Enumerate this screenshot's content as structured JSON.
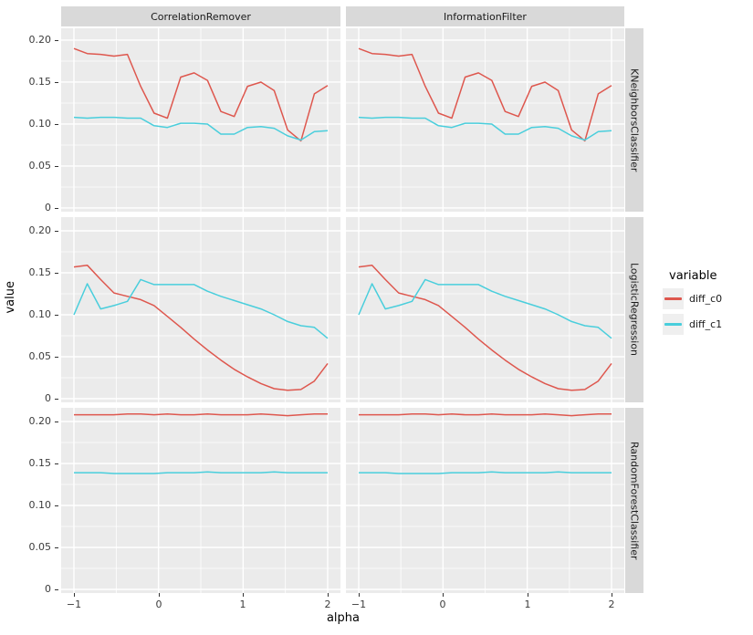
{
  "axes": {
    "x_title": "alpha",
    "y_title": "value",
    "x_tick_labels": [
      "−1",
      "0",
      "1",
      "2"
    ],
    "x_tick_values": [
      -1,
      0,
      1,
      2
    ],
    "x_minor_values": [
      -0.5,
      0.5,
      1.5
    ],
    "y_tick_labels": [
      "0.20",
      "0.15",
      "0.10",
      "0.05",
      "0"
    ],
    "y_tick_values": [
      0.2,
      0.15,
      0.1,
      0.05,
      0
    ],
    "y_minor_values": [
      0.175,
      0.125,
      0.075,
      0.025
    ]
  },
  "facets": {
    "cols": [
      "CorrelationRemover",
      "InformationFilter"
    ],
    "rows": [
      "KNeighborsClassifier",
      "LogisticRegression",
      "RandomForestClassifier"
    ]
  },
  "legend": {
    "title": "variable",
    "items": [
      {
        "label": "diff_c0",
        "color": "#DE574E"
      },
      {
        "label": "diff_c1",
        "color": "#49CEDC"
      }
    ]
  },
  "colors": {
    "panel_background": "#EBEBEB",
    "strip_background": "#D9D9D9",
    "grid": "#FFFFFF",
    "tick_text": "#3c3c3c",
    "series_diff_c0": "#DE574E",
    "series_diff_c1": "#49CEDC"
  },
  "chart_data": {
    "type": "line",
    "title": "",
    "xlabel": "alpha",
    "ylabel": "value",
    "legend_title": "variable",
    "legend_position": "right",
    "grid": true,
    "xlim": [
      -1.15,
      2.15
    ],
    "ylim": [
      0,
      0.215
    ],
    "facet": {
      "col_labels": [
        "CorrelationRemover",
        "InformationFilter"
      ],
      "row_labels": [
        "KNeighborsClassifier",
        "LogisticRegression",
        "RandomForestClassifier"
      ]
    },
    "x": [
      -1,
      -0.842,
      -0.684,
      -0.526,
      -0.368,
      -0.211,
      -0.053,
      0.105,
      0.263,
      0.421,
      0.579,
      0.737,
      0.895,
      1.053,
      1.211,
      1.368,
      1.526,
      1.684,
      1.842,
      2
    ],
    "panels": [
      {
        "row": "KNeighborsClassifier",
        "col": "CorrelationRemover",
        "series": [
          {
            "name": "diff_c0",
            "values": [
              0.19,
              0.184,
              0.183,
              0.181,
              0.183,
              0.145,
              0.113,
              0.107,
              0.156,
              0.161,
              0.152,
              0.115,
              0.109,
              0.145,
              0.15,
              0.14,
              0.093,
              0.08,
              0.136,
              0.146
            ]
          },
          {
            "name": "diff_c1",
            "values": [
              0.108,
              0.107,
              0.108,
              0.108,
              0.107,
              0.107,
              0.098,
              0.096,
              0.101,
              0.101,
              0.1,
              0.088,
              0.088,
              0.096,
              0.097,
              0.095,
              0.086,
              0.081,
              0.091,
              0.092
            ]
          }
        ]
      },
      {
        "row": "KNeighborsClassifier",
        "col": "InformationFilter",
        "series": [
          {
            "name": "diff_c0",
            "values": [
              0.19,
              0.184,
              0.183,
              0.181,
              0.183,
              0.145,
              0.113,
              0.107,
              0.156,
              0.161,
              0.152,
              0.115,
              0.109,
              0.145,
              0.15,
              0.14,
              0.093,
              0.08,
              0.136,
              0.146
            ]
          },
          {
            "name": "diff_c1",
            "values": [
              0.108,
              0.107,
              0.108,
              0.108,
              0.107,
              0.107,
              0.098,
              0.096,
              0.101,
              0.101,
              0.1,
              0.088,
              0.088,
              0.096,
              0.097,
              0.095,
              0.086,
              0.081,
              0.091,
              0.092
            ]
          }
        ]
      },
      {
        "row": "LogisticRegression",
        "col": "CorrelationRemover",
        "series": [
          {
            "name": "diff_c0",
            "values": [
              0.157,
              0.159,
              0.142,
              0.126,
              0.122,
              0.118,
              0.111,
              0.098,
              0.085,
              0.071,
              0.058,
              0.046,
              0.035,
              0.026,
              0.018,
              0.012,
              0.01,
              0.011,
              0.021,
              0.042
            ]
          },
          {
            "name": "diff_c1",
            "values": [
              0.1,
              0.137,
              0.107,
              0.111,
              0.116,
              0.142,
              0.136,
              0.136,
              0.136,
              0.136,
              0.128,
              0.122,
              0.117,
              0.112,
              0.107,
              0.1,
              0.092,
              0.087,
              0.085,
              0.072
            ]
          }
        ]
      },
      {
        "row": "LogisticRegression",
        "col": "InformationFilter",
        "series": [
          {
            "name": "diff_c0",
            "values": [
              0.157,
              0.159,
              0.142,
              0.126,
              0.122,
              0.118,
              0.111,
              0.098,
              0.085,
              0.071,
              0.058,
              0.046,
              0.035,
              0.026,
              0.018,
              0.012,
              0.01,
              0.011,
              0.021,
              0.042
            ]
          },
          {
            "name": "diff_c1",
            "values": [
              0.1,
              0.137,
              0.107,
              0.111,
              0.116,
              0.142,
              0.136,
              0.136,
              0.136,
              0.136,
              0.128,
              0.122,
              0.117,
              0.112,
              0.107,
              0.1,
              0.092,
              0.087,
              0.085,
              0.072
            ]
          }
        ]
      },
      {
        "row": "RandomForestClassifier",
        "col": "CorrelationRemover",
        "series": [
          {
            "name": "diff_c0",
            "values": [
              0.208,
              0.208,
              0.208,
              0.208,
              0.209,
              0.209,
              0.208,
              0.209,
              0.208,
              0.208,
              0.209,
              0.208,
              0.208,
              0.208,
              0.209,
              0.208,
              0.207,
              0.208,
              0.209,
              0.209
            ]
          },
          {
            "name": "diff_c1",
            "values": [
              0.139,
              0.139,
              0.139,
              0.138,
              0.138,
              0.138,
              0.138,
              0.139,
              0.139,
              0.139,
              0.14,
              0.139,
              0.139,
              0.139,
              0.139,
              0.14,
              0.139,
              0.139,
              0.139,
              0.139
            ]
          }
        ]
      },
      {
        "row": "RandomForestClassifier",
        "col": "InformationFilter",
        "series": [
          {
            "name": "diff_c0",
            "values": [
              0.208,
              0.208,
              0.208,
              0.208,
              0.209,
              0.209,
              0.208,
              0.209,
              0.208,
              0.208,
              0.209,
              0.208,
              0.208,
              0.208,
              0.209,
              0.208,
              0.207,
              0.208,
              0.209,
              0.209
            ]
          },
          {
            "name": "diff_c1",
            "values": [
              0.139,
              0.139,
              0.139,
              0.138,
              0.138,
              0.138,
              0.138,
              0.139,
              0.139,
              0.139,
              0.14,
              0.139,
              0.139,
              0.139,
              0.139,
              0.14,
              0.139,
              0.139,
              0.139,
              0.139
            ]
          }
        ]
      }
    ]
  }
}
